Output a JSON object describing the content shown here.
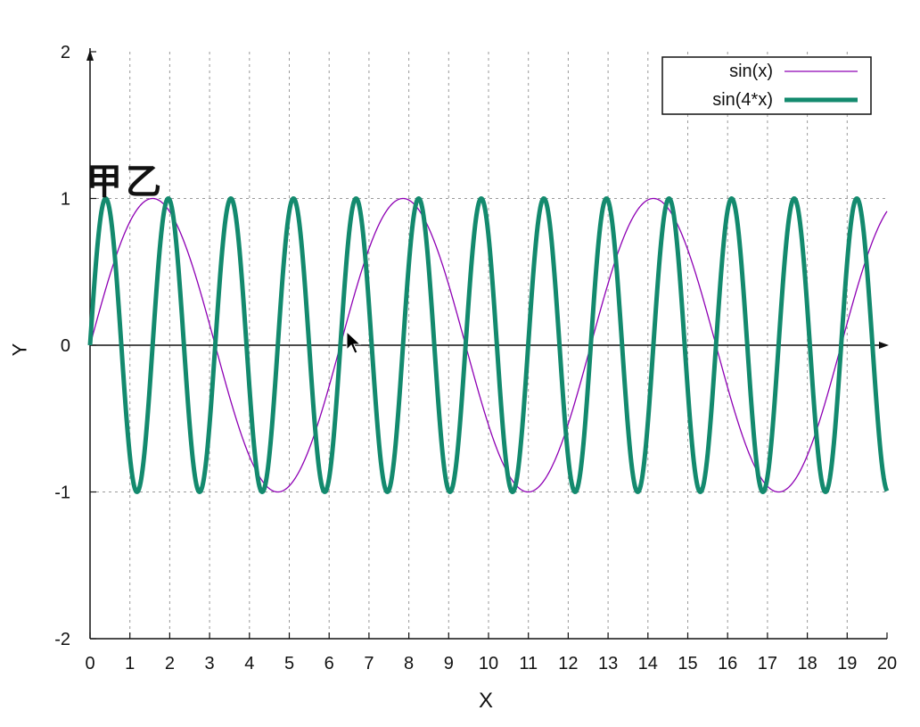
{
  "chart_data": {
    "type": "line",
    "title": "",
    "xlabel": "X",
    "ylabel": "Y",
    "xlim": [
      0,
      20
    ],
    "ylim": [
      -2,
      2
    ],
    "x_ticks": [
      0,
      1,
      2,
      3,
      4,
      5,
      6,
      7,
      8,
      9,
      10,
      11,
      12,
      13,
      14,
      15,
      16,
      17,
      18,
      19,
      20
    ],
    "y_ticks": [
      -2,
      -1,
      0,
      1,
      2
    ],
    "grid": true,
    "grid_style": "dotted",
    "axes_through_zero": true,
    "legend_position": "top-right",
    "annotation": "甲乙",
    "series": [
      {
        "name": "sin(x)",
        "function": "sin(x)",
        "color": "#8e00b4",
        "line": "thin"
      },
      {
        "name": "sin(4*x)",
        "function": "sin(4*x)",
        "color": "#138a6e",
        "line": "thick"
      }
    ]
  }
}
